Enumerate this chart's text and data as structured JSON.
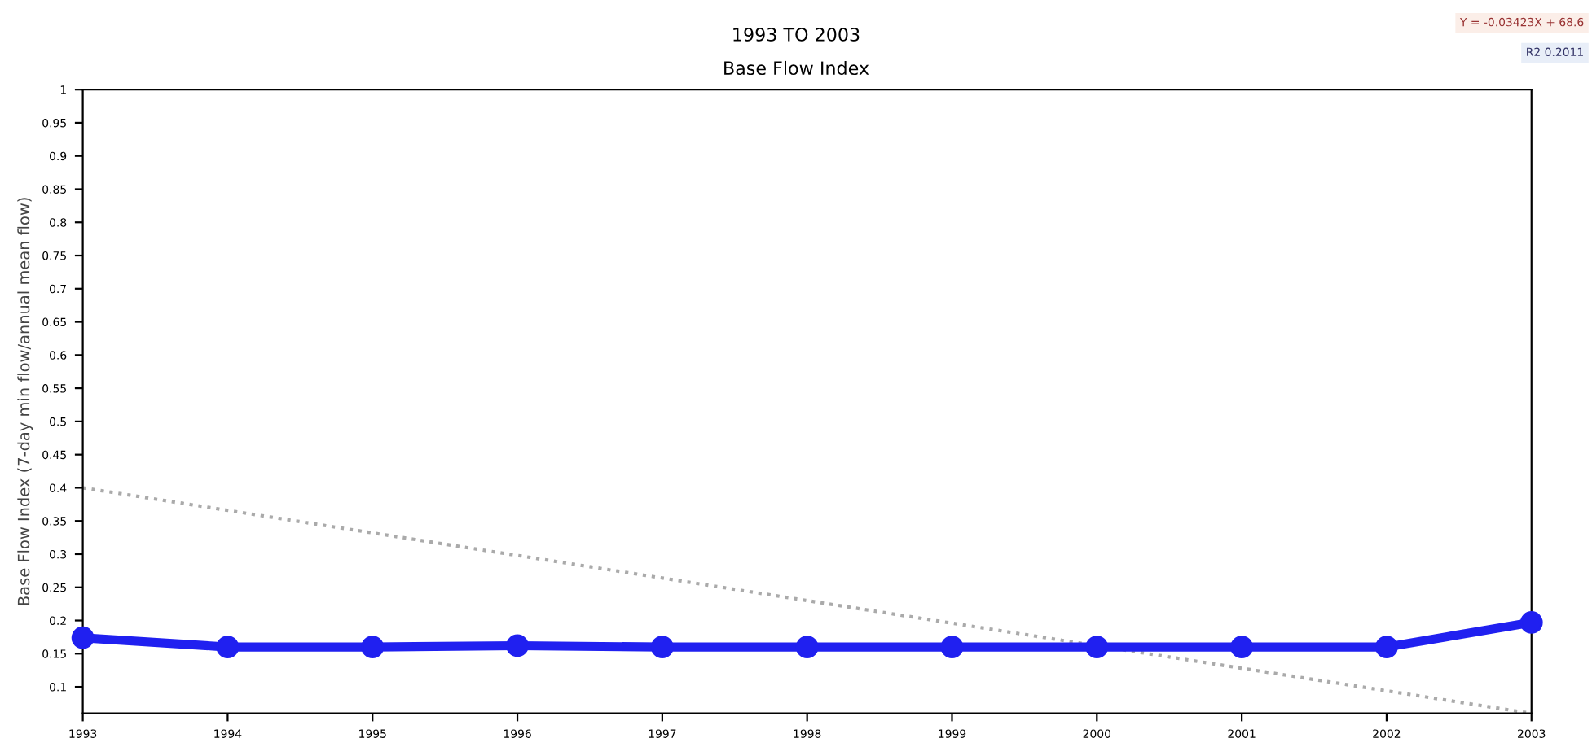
{
  "chart_data": {
    "type": "line",
    "title": "1993 TO 2003",
    "subtitle": "Base Flow Index",
    "ylabel": "Base Flow Index (7-day min flow/annual mean flow)",
    "x": [
      1993,
      1994,
      1995,
      1996,
      1997,
      1998,
      1999,
      2000,
      2001,
      2002,
      2003
    ],
    "series": [
      {
        "color": "#2020f0",
        "marker": "circle",
        "line_style": "solid",
        "values": [
          0.174,
          0.16,
          0.16,
          0.162,
          0.16,
          0.16,
          0.16,
          0.16,
          0.16,
          0.16,
          0.197
        ]
      },
      {
        "color": "#aaaaaa",
        "marker": "none",
        "line_style": "dotted",
        "x": [
          1993,
          2003
        ],
        "values": [
          0.4,
          0.06
        ]
      }
    ],
    "xlim": [
      1993,
      2003
    ],
    "ylim": [
      0.06,
      1
    ],
    "xticks": [
      1993,
      1994,
      1995,
      1996,
      1997,
      1998,
      1999,
      2000,
      2001,
      2002,
      2003
    ],
    "yticks": [
      0.1,
      0.15,
      0.2,
      0.25,
      0.3,
      0.35,
      0.4,
      0.45,
      0.5,
      0.55,
      0.6,
      0.65,
      0.7,
      0.75,
      0.8,
      0.85,
      0.9,
      0.95,
      1
    ],
    "grid": false,
    "legend": false,
    "annotations": [
      "Y = -0.03423X + 68.6",
      "R2 0.2011"
    ]
  }
}
